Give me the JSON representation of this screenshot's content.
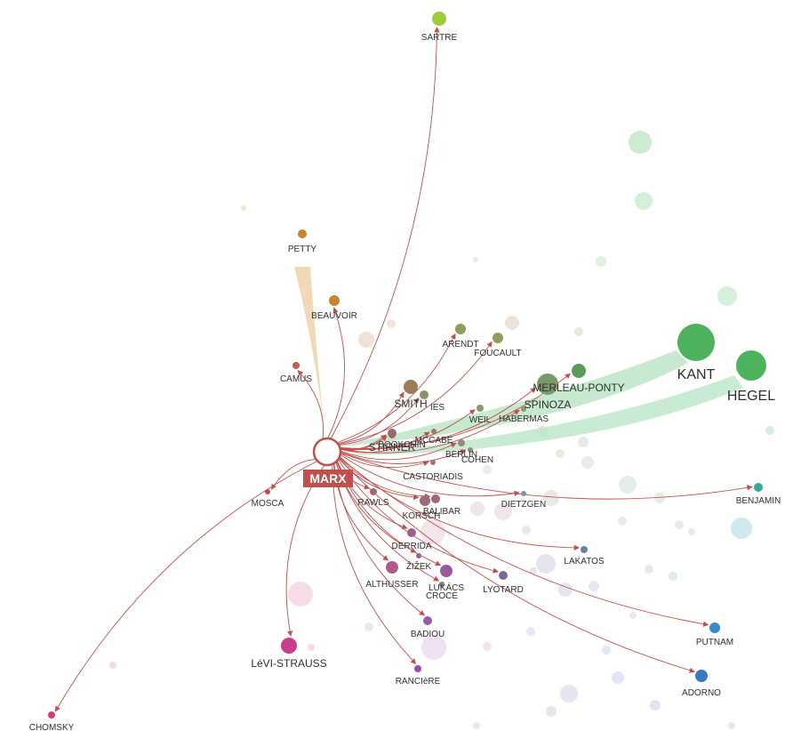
{
  "graph": {
    "focus": "MARX",
    "colors": {
      "edge": "#c0504d",
      "focus_ring": "#c0504d",
      "influx_petty": "#f0d2a8",
      "influx_green": "#b8e4c4"
    },
    "nodes": [
      {
        "id": "SARTRE",
        "label": "SARTRE",
        "color": "#9ccc3c"
      },
      {
        "id": "PETTY",
        "label": "PETTY",
        "color": "#c9852d"
      },
      {
        "id": "BEAUVOIR",
        "label": "BEAUVOIR",
        "color": "#c9852d"
      },
      {
        "id": "CAMUS",
        "label": "CAMUS",
        "color": "#c0604a"
      },
      {
        "id": "ARENDT",
        "label": "ARENDT",
        "color": "#8ca05a"
      },
      {
        "id": "FOUCAULT",
        "label": "FOUCAULT",
        "color": "#8ca05a"
      },
      {
        "id": "MERLEAU-PONTY",
        "label": "MERLEAU-PONTY",
        "color": "#5a9a5a"
      },
      {
        "id": "KANT",
        "label": "KANT",
        "color": "#4cb35c"
      },
      {
        "id": "HEGEL",
        "label": "HEGEL",
        "color": "#4cb35c"
      },
      {
        "id": "SMITH",
        "label": "SMITH",
        "color": "#9c7a5a"
      },
      {
        "id": "IES",
        "label": "IES",
        "color": "#8e8e6a"
      },
      {
        "id": "SPINOZA",
        "label": "SPINOZA",
        "color": "#7a9a6a"
      },
      {
        "id": "WEIL",
        "label": "WEIL",
        "color": "#8a9a6a"
      },
      {
        "id": "HABERMAS",
        "label": "HABERMAS",
        "color": "#8a9a6a"
      },
      {
        "id": "BOOKCHIN",
        "label": "BOOKCHIN",
        "color": "#9a6a6a"
      },
      {
        "id": "MCCABE",
        "label": "MCCABE",
        "color": "#9a7a6a"
      },
      {
        "id": "STIRNER",
        "label": "STIRNER",
        "color": "#9a6a6a"
      },
      {
        "id": "BERLIN",
        "label": "BERLIN",
        "color": "#9a8a7a"
      },
      {
        "id": "COHEN",
        "label": "COHEN",
        "color": "#9a8a7a"
      },
      {
        "id": "CASTORIADIS",
        "label": "CASTORIADIS",
        "color": "#9a7a7a"
      },
      {
        "id": "BENJAMIN",
        "label": "BENJAMIN",
        "color": "#3aa898"
      },
      {
        "id": "MOSCA",
        "label": "MOSCA",
        "color": "#c04a5a"
      },
      {
        "id": "RAWLS",
        "label": "RAWLS",
        "color": "#a06878"
      },
      {
        "id": "KORSCH",
        "label": "KORSCH",
        "color": "#a06878"
      },
      {
        "id": "BALIBAR",
        "label": "BALIBAR",
        "color": "#a06878"
      },
      {
        "id": "DIETZGEN",
        "label": "DIETZGEN",
        "color": "#8a8aa0"
      },
      {
        "id": "DERRIDA",
        "label": "DERRIDA",
        "color": "#9a6090"
      },
      {
        "id": "LAKATOS",
        "label": "LAKATOS",
        "color": "#6a80a0"
      },
      {
        "id": "ŽIŽEK",
        "label": "ŽIŽEK",
        "color": "#9a6090"
      },
      {
        "id": "ALTHUSSER",
        "label": "ALTHUSSER",
        "color": "#b05a8a"
      },
      {
        "id": "LUKÁCS",
        "label": "LUKÁCS",
        "color": "#9a5a9a"
      },
      {
        "id": "CROCE",
        "label": "CROCE",
        "color": "#9a6a9a"
      },
      {
        "id": "LYOTARD",
        "label": "LYOTARD",
        "color": "#7a6a9a"
      },
      {
        "id": "LéVI-STRAUSS",
        "label": "LéVI-STRAUSS",
        "color": "#cc3c8c"
      },
      {
        "id": "BADIOU",
        "label": "BADIOU",
        "color": "#9a5ab0"
      },
      {
        "id": "RANCIèRE",
        "label": "RANCIèRE",
        "color": "#9a4ab0"
      },
      {
        "id": "PUTNAM",
        "label": "PUTNAM",
        "color": "#3a88c8"
      },
      {
        "id": "ADORNO",
        "label": "ADORNO",
        "color": "#3a78c0"
      },
      {
        "id": "CHOMSKY",
        "label": "CHOMSKY",
        "color": "#d03c7c"
      }
    ]
  }
}
